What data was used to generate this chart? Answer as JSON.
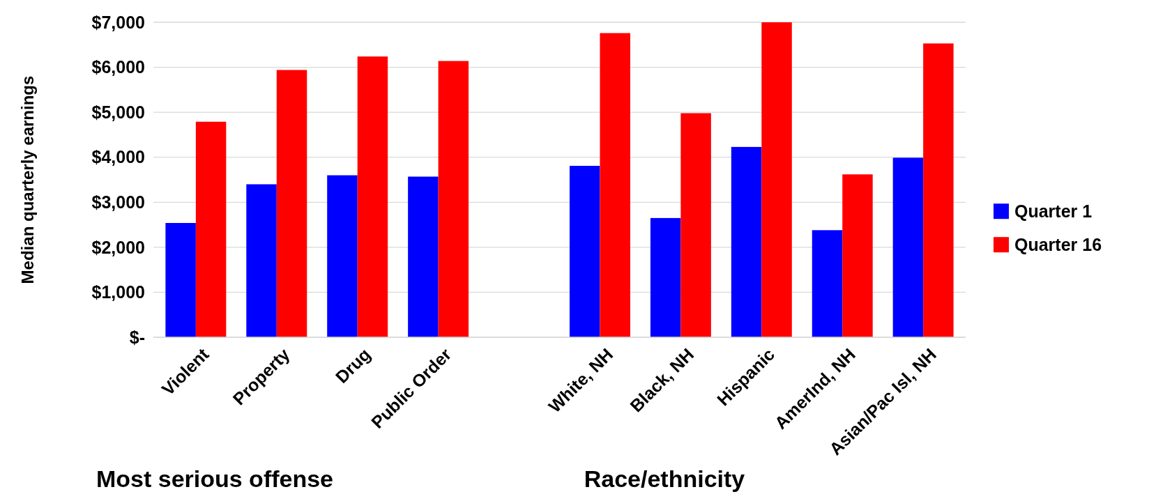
{
  "chart_data": {
    "type": "bar",
    "ylabel": "Median quarterly earnings",
    "categories": [
      "Violent",
      "Property",
      "Drug",
      "Public Order",
      null,
      "White, NH",
      "Black, NH",
      "Hispanic",
      "AmerInd, NH",
      "Asian/Pac Isl, NH"
    ],
    "series": [
      {
        "name": "Quarter 1",
        "color": "#0000ff",
        "values": [
          2540,
          3400,
          3600,
          3570,
          null,
          3810,
          2650,
          4230,
          2380,
          3990
        ]
      },
      {
        "name": "Quarter 16",
        "color": "#ff0000",
        "values": [
          4790,
          5940,
          6240,
          6140,
          null,
          6760,
          4980,
          7000,
          3620,
          6530
        ]
      }
    ],
    "ylim": [
      0,
      7000
    ],
    "yticks": [
      {
        "value": 0,
        "label": "$-"
      },
      {
        "value": 1000,
        "label": "$1,000"
      },
      {
        "value": 2000,
        "label": "$2,000"
      },
      {
        "value": 3000,
        "label": "$3,000"
      },
      {
        "value": 4000,
        "label": "$4,000"
      },
      {
        "value": 5000,
        "label": "$5,000"
      },
      {
        "value": 6000,
        "label": "$6,000"
      },
      {
        "value": 7000,
        "label": "$7,000"
      }
    ],
    "grid": "y",
    "legend": "right",
    "annotations": [
      "Most serious offense",
      "Race/ethnicity"
    ]
  }
}
